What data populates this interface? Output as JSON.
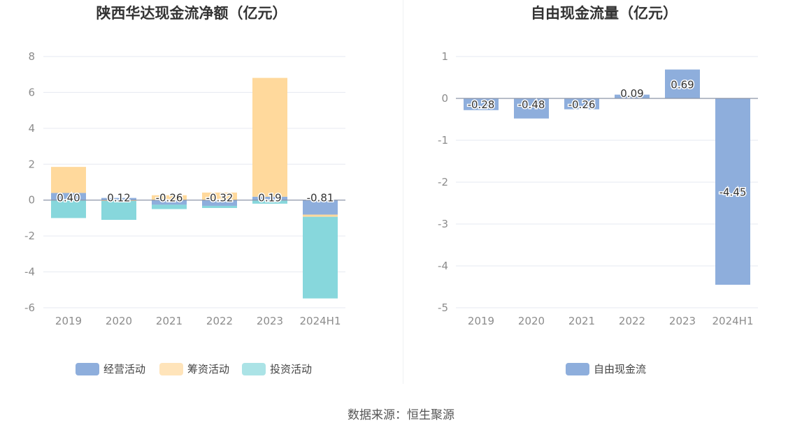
{
  "footer": {
    "source": "数据来源：恒生聚源"
  },
  "colors": {
    "operating": "#8eaedc",
    "financing": "#ffd99c",
    "investing": "#87d7dc",
    "free_cash_flow": "#8eaedc",
    "grid": "#e6e9f0",
    "axis_text": "#8c8c8c",
    "title": "#333333"
  },
  "chart_data": [
    {
      "type": "bar",
      "stacked": true,
      "title": "陕西华达现金流净额（亿元）",
      "categories": [
        "2019",
        "2020",
        "2021",
        "2022",
        "2023",
        "2024H1"
      ],
      "ylim": [
        -6,
        8
      ],
      "yticks": [
        8,
        6,
        4,
        2,
        0,
        -2,
        -4,
        -6
      ],
      "grid": true,
      "legend": "bottom",
      "series": [
        {
          "name": "经营活动",
          "color_key": "operating",
          "values": [
            0.4,
            0.12,
            -0.26,
            -0.32,
            0.19,
            -0.81
          ],
          "labeled": true
        },
        {
          "name": "筹资活动",
          "color_key": "financing",
          "values": [
            1.45,
            -0.05,
            0.27,
            0.42,
            6.62,
            -0.12
          ],
          "labeled": false
        },
        {
          "name": "投资活动",
          "color_key": "investing",
          "values": [
            -1.0,
            -1.05,
            -0.24,
            -0.12,
            -0.2,
            -4.55
          ],
          "labeled": false
        }
      ]
    },
    {
      "type": "bar",
      "title": "自由现金流量（亿元）",
      "categories": [
        "2019",
        "2020",
        "2021",
        "2022",
        "2023",
        "2024H1"
      ],
      "ylim": [
        -5,
        1
      ],
      "yticks": [
        1,
        0,
        -1,
        -2,
        -3,
        -4,
        -5
      ],
      "grid": true,
      "legend": "bottom",
      "series": [
        {
          "name": "自由现金流",
          "color_key": "free_cash_flow",
          "values": [
            -0.28,
            -0.48,
            -0.26,
            0.09,
            0.69,
            -4.45
          ],
          "labeled": true
        }
      ]
    }
  ]
}
